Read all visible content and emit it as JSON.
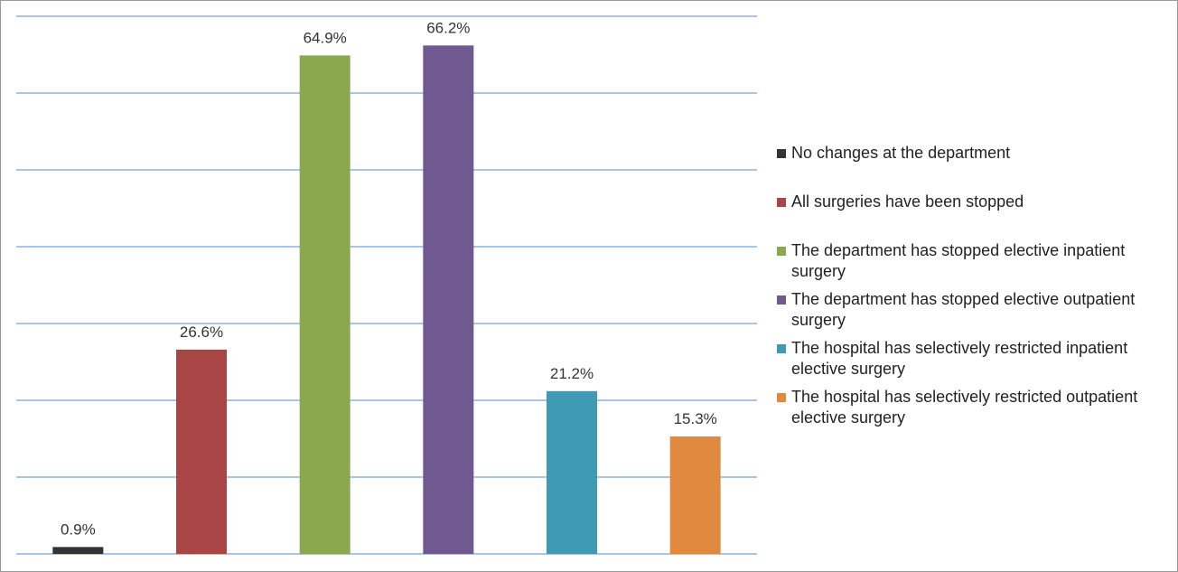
{
  "chart_data": {
    "type": "bar",
    "series": [
      {
        "name": "No changes at the department",
        "color": "#333333",
        "values": [
          0.9
        ],
        "value_labels": [
          "0.9%"
        ]
      },
      {
        "name": "All surgeries have been stopped",
        "color": "#a94545",
        "values": [
          26.6
        ],
        "value_labels": [
          "26.6%"
        ]
      },
      {
        "name": "The department has stopped elective inpatient surgery",
        "color": "#8aa84e",
        "values": [
          64.9
        ],
        "value_labels": [
          "64.9%"
        ]
      },
      {
        "name": "The department has stopped elective outpatient surgery",
        "color": "#705890",
        "values": [
          66.2
        ],
        "value_labels": [
          "66.2%"
        ]
      },
      {
        "name": "The hospital has selectively restricted inpatient elective surgery",
        "color": "#3f9bb3",
        "values": [
          21.2
        ],
        "value_labels": [
          "21.2%"
        ]
      },
      {
        "name": "The hospital has selectively restricted outpatient elective surgery",
        "color": "#df8a3f",
        "values": [
          15.3
        ],
        "value_labels": [
          "15.3%"
        ]
      }
    ],
    "ylim": [
      0,
      70
    ],
    "yticks": [
      0,
      10,
      20,
      30,
      40,
      50,
      60,
      70
    ],
    "grid": true,
    "legend": "right"
  }
}
